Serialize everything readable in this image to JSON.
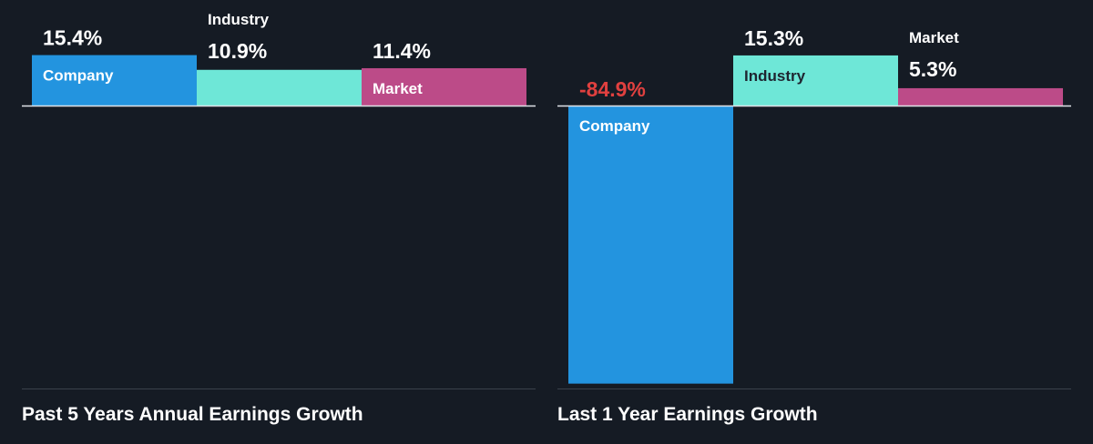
{
  "colors": {
    "background": "#151b24",
    "company": "#2394df",
    "industry": "#6ee7d7",
    "market": "#bc4b88",
    "negative_label": "#e0403f",
    "text": "#ffffff",
    "bar_label_dark": "#1e2530",
    "axis_line": "#dfe3e8",
    "divider": "#3a414b"
  },
  "chart_data": [
    {
      "type": "bar",
      "title": "Past 5 Years Annual Earnings Growth",
      "categories": [
        "Company",
        "Industry",
        "Market"
      ],
      "values": [
        15.4,
        10.9,
        11.4
      ],
      "value_labels": [
        "15.4%",
        "10.9%",
        "11.4%"
      ],
      "unit": "%",
      "ylim": [
        -84.9,
        15.4
      ],
      "grid": false
    },
    {
      "type": "bar",
      "title": "Last 1 Year Earnings Growth",
      "categories": [
        "Company",
        "Industry",
        "Market"
      ],
      "values": [
        -84.9,
        15.3,
        5.3
      ],
      "value_labels": [
        "-84.9%",
        "15.3%",
        "5.3%"
      ],
      "unit": "%",
      "ylim": [
        -84.9,
        15.4
      ],
      "grid": false
    }
  ]
}
